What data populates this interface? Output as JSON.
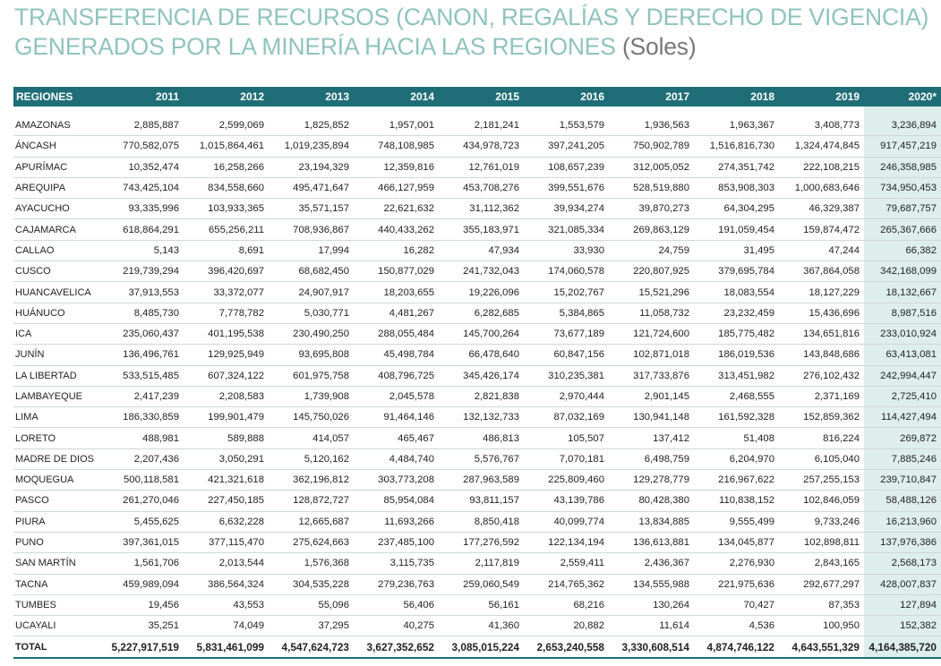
{
  "title": {
    "line1": "TRANSFERENCIA DE RECURSOS (CANON, REGALÍAS Y DERECHO DE VIGENCIA)",
    "line2": "GENERADOS POR LA MINERÍA HACIA LAS REGIONES",
    "unit": "(Soles)"
  },
  "table": {
    "headers": [
      "REGIONES",
      "2011",
      "2012",
      "2013",
      "2014",
      "2015",
      "2016",
      "2017",
      "2018",
      "2019",
      "2020*"
    ],
    "rows": [
      [
        "AMAZONAS",
        "2,885,887",
        "2,599,069",
        "1,825,852",
        "1,957,001",
        "2,181,241",
        "1,553,579",
        "1,936,563",
        "1,963,367",
        "3,408,773",
        "3,236,894"
      ],
      [
        "ÁNCASH",
        "770,582,075",
        "1,015,864,461",
        "1,019,235,894",
        "748,108,985",
        "434,978,723",
        "397,241,205",
        "750,902,789",
        "1,516,816,730",
        "1,324,474,845",
        "917,457,219"
      ],
      [
        "APURÍMAC",
        "10,352,474",
        "16,258,266",
        "23,194,329",
        "12,359,816",
        "12,761,019",
        "108,657,239",
        "312,005,052",
        "274,351,742",
        "222,108,215",
        "246,358,985"
      ],
      [
        "AREQUIPA",
        "743,425,104",
        "834,558,660",
        "495,471,647",
        "466,127,959",
        "453,708,276",
        "399,551,676",
        "528,519,880",
        "853,908,303",
        "1,000,683,646",
        "734,950,453"
      ],
      [
        "AYACUCHO",
        "93,335,996",
        "103,933,365",
        "35,571,157",
        "22,621,632",
        "31,112,362",
        "39,934,274",
        "39,870,273",
        "64,304,295",
        "46,329,387",
        "79,687,757"
      ],
      [
        "CAJAMARCA",
        "618,864,291",
        "655,256,211",
        "708,936,867",
        "440,433,262",
        "355,183,971",
        "321,085,334",
        "269,863,129",
        "191,059,454",
        "159,874,472",
        "265,367,666"
      ],
      [
        "CALLAO",
        "5,143",
        "8,691",
        "17,994",
        "16,282",
        "47,934",
        "33,930",
        "24,759",
        "31,495",
        "47,244",
        "66,382"
      ],
      [
        "CUSCO",
        "219,739,294",
        "396,420,697",
        "68,682,450",
        "150,877,029",
        "241,732,043",
        "174,060,578",
        "220,807,925",
        "379,695,784",
        "367,864,058",
        "342,168,099"
      ],
      [
        "HUANCAVELICA",
        "37,913,553",
        "33,372,077",
        "24,907,917",
        "18,203,655",
        "19,226,096",
        "15,202,767",
        "15,521,296",
        "18,083,554",
        "18,127,229",
        "18,132,667"
      ],
      [
        "HUÁNUCO",
        "8,485,730",
        "7,778,782",
        "5,030,771",
        "4,481,267",
        "6,282,685",
        "5,384,865",
        "11,058,732",
        "23,232,459",
        "15,436,696",
        "8,987,516"
      ],
      [
        "ICA",
        "235,060,437",
        "401,195,538",
        "230,490,250",
        "288,055,484",
        "145,700,264",
        "73,677,189",
        "121,724,600",
        "185,775,482",
        "134,651,816",
        "233,010,924"
      ],
      [
        "JUNÍN",
        "136,496,761",
        "129,925,949",
        "93,695,808",
        "45,498,784",
        "66,478,640",
        "60,847,156",
        "102,871,018",
        "186,019,536",
        "143,848,686",
        "63,413,081"
      ],
      [
        "LA LIBERTAD",
        "533,515,485",
        "607,324,122",
        "601,975,758",
        "408,796,725",
        "345,426,174",
        "310,235,381",
        "317,733,876",
        "313,451,982",
        "276,102,432",
        "242,994,447"
      ],
      [
        "LAMBAYEQUE",
        "2,417,239",
        "2,208,583",
        "1,739,908",
        "2,045,578",
        "2,821,838",
        "2,970,444",
        "2,901,145",
        "2,468,555",
        "2,371,169",
        "2,725,410"
      ],
      [
        "LIMA",
        "186,330,859",
        "199,901,479",
        "145,750,026",
        "91,464,146",
        "132,132,733",
        "87,032,169",
        "130,941,148",
        "161,592,328",
        "152,859,362",
        "114,427,494"
      ],
      [
        "LORETO",
        "488,981",
        "589,888",
        "414,057",
        "465,467",
        "486,813",
        "105,507",
        "137,412",
        "51,408",
        "816,224",
        "269,872"
      ],
      [
        "MADRE DE DIOS",
        "2,207,436",
        "3,050,291",
        "5,120,162",
        "4,484,740",
        "5,576,767",
        "7,070,181",
        "6,498,759",
        "6,204,970",
        "6,105,040",
        "7,885,246"
      ],
      [
        "MOQUEGUA",
        "500,118,581",
        "421,321,618",
        "362,196,812",
        "303,773,208",
        "287,963,589",
        "225,809,460",
        "129,278,779",
        "216,967,622",
        "257,255,153",
        "239,710,847"
      ],
      [
        "PASCO",
        "261,270,046",
        "227,450,185",
        "128,872,727",
        "85,954,084",
        "93,811,157",
        "43,139,786",
        "80,428,380",
        "110,838,152",
        "102,846,059",
        "58,488,126"
      ],
      [
        "PIURA",
        "5,455,625",
        "6,632,228",
        "12,665,687",
        "11,693,266",
        "8,850,418",
        "40,099,774",
        "13,834,885",
        "9,555,499",
        "9,733,246",
        "16,213,960"
      ],
      [
        "PUNO",
        "397,361,015",
        "377,115,470",
        "275,624,663",
        "237,485,100",
        "177,276,592",
        "122,134,194",
        "136,613,881",
        "134,045,877",
        "102,898,811",
        "137,976,386"
      ],
      [
        "SAN MARTÍN",
        "1,561,706",
        "2,013,544",
        "1,576,368",
        "3,115,735",
        "2,117,819",
        "2,559,411",
        "2,436,367",
        "2,276,930",
        "2,843,165",
        "2,568,173"
      ],
      [
        "TACNA",
        "459,989,094",
        "386,564,324",
        "304,535,228",
        "279,236,763",
        "259,060,549",
        "214,765,362",
        "134,555,988",
        "221,975,636",
        "292,677,297",
        "428,007,837"
      ],
      [
        "TUMBES",
        "19,456",
        "43,553",
        "55,096",
        "56,406",
        "56,161",
        "68,216",
        "130,264",
        "70,427",
        "87,353",
        "127,894"
      ],
      [
        "UCAYALI",
        "35,251",
        "74,049",
        "37,295",
        "40,275",
        "41,360",
        "20,882",
        "11,614",
        "4,536",
        "100,950",
        "152,382"
      ]
    ],
    "total": [
      "TOTAL",
      "5,227,917,519",
      "5,831,461,099",
      "4,547,624,723",
      "3,627,352,652",
      "3,085,015,224",
      "2,653,240,558",
      "3,330,608,514",
      "4,874,746,122",
      "4,643,551,329",
      "4,164,385,720"
    ]
  }
}
